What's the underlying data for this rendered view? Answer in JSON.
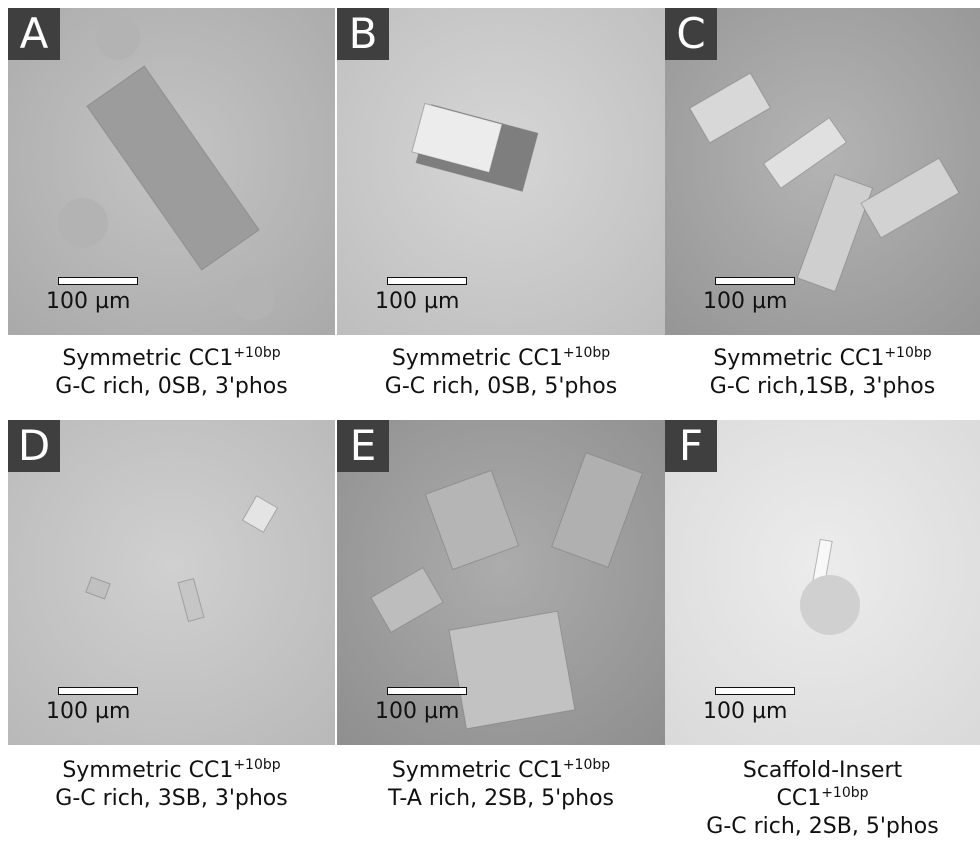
{
  "panels": [
    {
      "label": "A",
      "scale_bar": "100 µm",
      "caption": [
        {
          "text": "Symmetric CC1",
          "sup": "+10bp"
        },
        {
          "text": "G-C rich, 0SB, 3'phos"
        }
      ]
    },
    {
      "label": "B",
      "scale_bar": "100 µm",
      "caption": [
        {
          "text": "Symmetric CC1",
          "sup": "+10bp"
        },
        {
          "text": "G-C rich, 0SB, 5'phos"
        }
      ]
    },
    {
      "label": "C",
      "scale_bar": "100 µm",
      "caption": [
        {
          "text": "Symmetric CC1",
          "sup": "+10bp"
        },
        {
          "text": "G-C rich,1SB, 3'phos"
        }
      ]
    },
    {
      "label": "D",
      "scale_bar": "100 µm",
      "caption": [
        {
          "text": "Symmetric CC1",
          "sup": "+10bp"
        },
        {
          "text": "G-C rich, 3SB, 3'phos"
        }
      ]
    },
    {
      "label": "E",
      "scale_bar": "100 µm",
      "caption": [
        {
          "text": "Symmetric CC1",
          "sup": "+10bp"
        },
        {
          "text": "T-A rich, 2SB, 5'phos"
        }
      ]
    },
    {
      "label": "F",
      "scale_bar": "100 µm",
      "caption": [
        {
          "text": "Scaffold-Insert"
        },
        {
          "text": "CC1",
          "sup": "+10bp"
        },
        {
          "text": "G-C rich, 2SB, 5'phos"
        }
      ]
    }
  ]
}
